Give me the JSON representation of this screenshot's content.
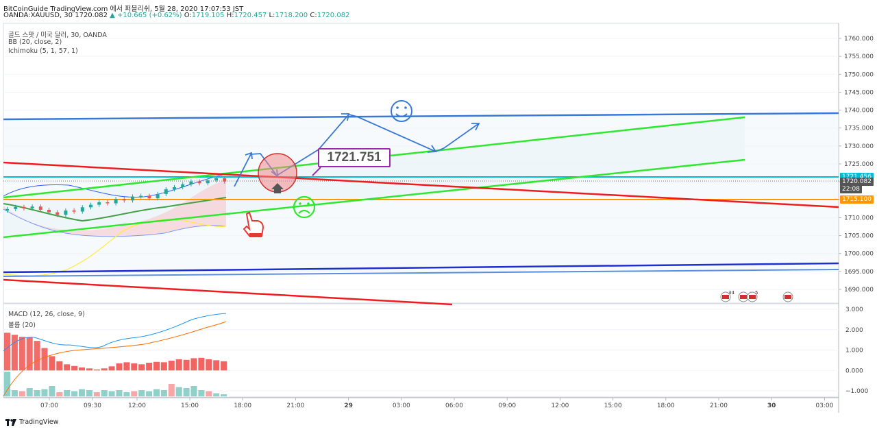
{
  "header": {
    "line1": "BitCoinGuide TradingView.com 에서 퍼블리쉬, 5월 28, 2020 17:07:53 JST",
    "symbol": "OANDA:XAUUSD, 30 1720.082",
    "change": "+10.665 (+0.62%)",
    "o_label": "O:",
    "o_value": "1719.105",
    "h_label": "H:",
    "h_value": "1720.457",
    "l_label": "L:",
    "l_value": "1718.200",
    "c_label": "C:",
    "c_value": "1720.082"
  },
  "legend": {
    "title": "골드 스팟 / 미국 달러, 30, OANDA",
    "bb": "BB (20, close, 2)",
    "ichimoku": "Ichimoku (5, 1, 57, 1)",
    "macd": "MACD (12, 26, close, 9)",
    "volume": "볼륨 (20)"
  },
  "price_axis": {
    "ticks": [
      "1760.000",
      "1755.000",
      "1750.000",
      "1745.000",
      "1740.000",
      "1735.000",
      "1730.000",
      "1725.000",
      "1720.000",
      "1715.000",
      "1710.000",
      "1705.000",
      "1700.000",
      "1695.000",
      "1690.000"
    ],
    "tags": [
      {
        "text": "1721.456",
        "color": "#00bcd4",
        "value": 1721.456
      },
      {
        "text": "1720.082",
        "color": "#555555",
        "value": 1720.082
      },
      {
        "text": "22:08",
        "color": "#555555",
        "value": 1718.0
      },
      {
        "text": "1715.100",
        "color": "#ff9800",
        "value": 1715.1
      }
    ]
  },
  "macd_axis": {
    "ticks": [
      "3.000",
      "2.000",
      "1.000",
      "0.000",
      "−1.000"
    ]
  },
  "time_axis": {
    "ticks": [
      "07:00",
      "09:30",
      "12:00",
      "15:00",
      "18:00",
      "21:00",
      "29",
      "03:00",
      "06:00",
      "09:00",
      "12:00",
      "15:00",
      "18:00",
      "21:00",
      "30",
      "03:00"
    ]
  },
  "annotation": {
    "price_callout": "1721.751",
    "calendar_badges": [
      "34",
      "5"
    ]
  },
  "footer": {
    "brand": "TradingView"
  },
  "colors": {
    "upper_channel": "#3a78d6",
    "green_channel": "#2ee82e",
    "red_line": "#ee1c1c",
    "orange_level": "#ff9800",
    "cyan_level": "#00bcd4",
    "blue_bottom": "#1f2ecf",
    "callout_border": "#9c27b0"
  },
  "chart_data": {
    "type": "line",
    "title": "골드 스팟 / 미국 달러, 30, OANDA",
    "y_range": [
      1688,
      1764
    ],
    "levels": [
      1721.456,
      1720.082,
      1715.1
    ],
    "candles_close": [
      1712.4,
      1713.0,
      1712.6,
      1713.1,
      1712.2,
      1711.5,
      1710.8,
      1712.0,
      1711.7,
      1712.9,
      1713.6,
      1714.3,
      1714.0,
      1715.2,
      1714.8,
      1715.9,
      1716.1,
      1715.4,
      1716.6,
      1717.9,
      1718.5,
      1719.3,
      1720.1,
      1719.6,
      1720.4,
      1721.0,
      1720.082
    ]
  }
}
